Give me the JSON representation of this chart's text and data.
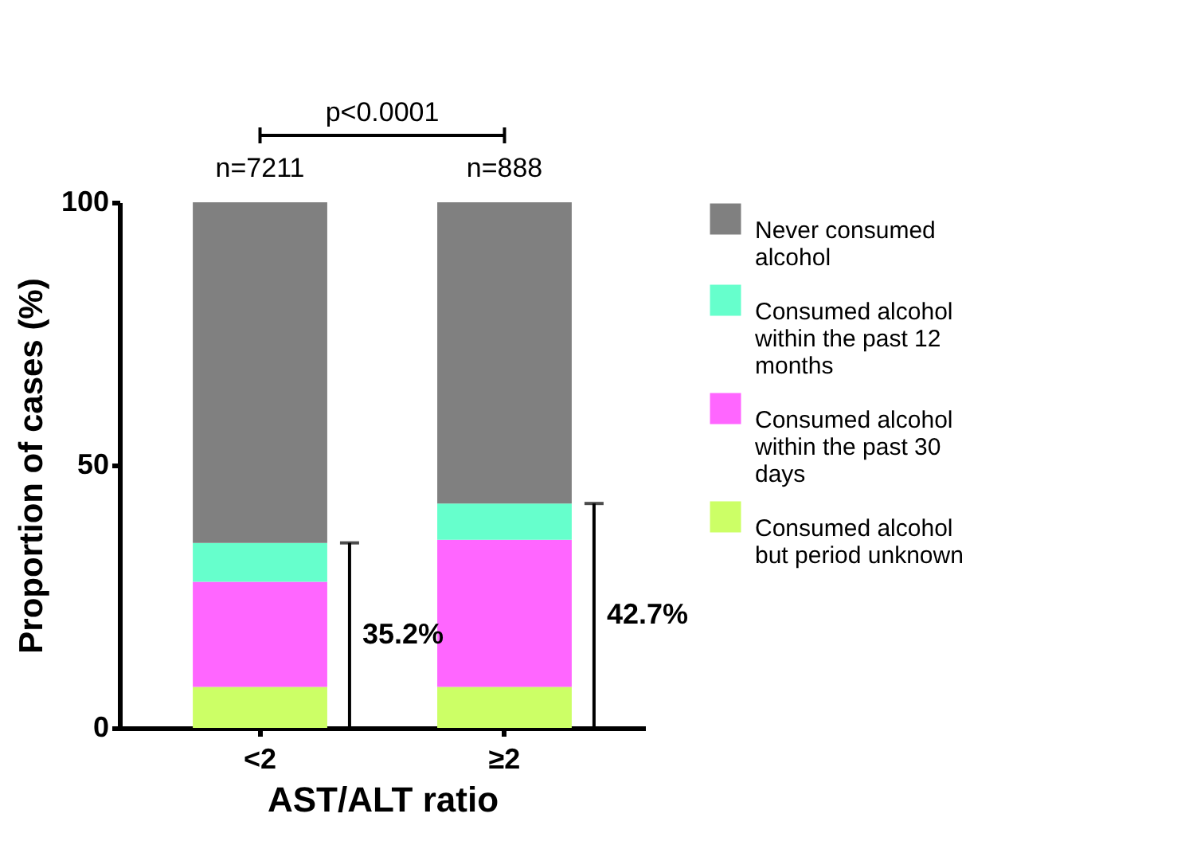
{
  "chart_data": {
    "type": "bar",
    "stacked": true,
    "xlabel": "AST/ALT ratio",
    "ylabel": "Proportion of cases (%)",
    "categories": [
      "<2",
      "≥2"
    ],
    "series": [
      {
        "name": "Consumed alcohol but period unknown",
        "color": "#ccff66",
        "values": [
          7.8,
          7.8
        ]
      },
      {
        "name": "Consumed alcohol within the past 30 days",
        "color": "#ff66ff",
        "values": [
          20.0,
          28.0
        ]
      },
      {
        "name": "Consumed alcohol within the past 12 months",
        "color": "#66ffcc",
        "values": [
          7.4,
          6.9
        ]
      },
      {
        "name": "Never consumed alcohol",
        "color": "#808080",
        "values": [
          64.8,
          57.3
        ]
      }
    ],
    "ylim": [
      0,
      100
    ],
    "yticks": [
      0,
      50,
      100
    ],
    "grid": false,
    "legend": "top right",
    "annotations": [
      {
        "text": "n=7211",
        "x": "<2",
        "y": 100
      },
      {
        "text": "n=888",
        "x": "≥2",
        "y": 100
      },
      "35.2%",
      "42.7%",
      "p<0.0001"
    ]
  }
}
